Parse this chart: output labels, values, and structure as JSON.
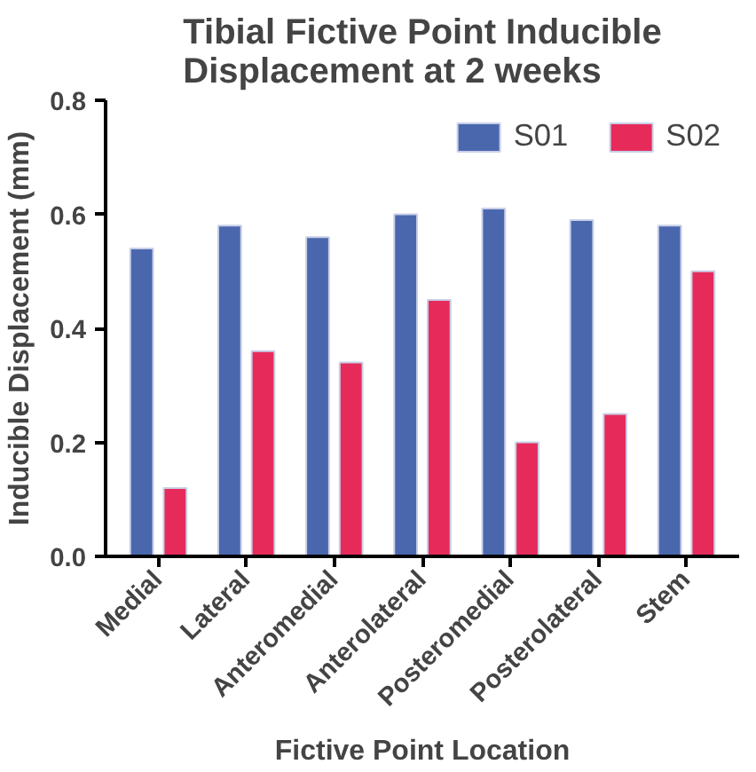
{
  "chart_data": {
    "type": "bar",
    "title": "Tibial Fictive Point Inducible\nDisplacement at 2 weeks",
    "xlabel": "Fictive Point Location",
    "ylabel": "Inducible Displacement (mm)",
    "categories": [
      "Medial",
      "Lateral",
      "Anteromedial",
      "Anterolateral",
      "Posteromedial",
      "Posterolateral",
      "Stem"
    ],
    "series": [
      {
        "name": "S01",
        "color": "#4a67ae",
        "values": [
          0.54,
          0.58,
          0.56,
          0.6,
          0.61,
          0.59,
          0.58
        ]
      },
      {
        "name": "S02",
        "color": "#e62b5b",
        "values": [
          0.12,
          0.36,
          0.34,
          0.45,
          0.2,
          0.25,
          0.5
        ]
      }
    ],
    "ylim": [
      0,
      0.8
    ],
    "yticks": [
      {
        "value": 0,
        "label": "0.0"
      },
      {
        "value": 0.2,
        "label": "0.2"
      },
      {
        "value": 0.4,
        "label": "0.4"
      },
      {
        "value": 0.6,
        "label": "0.6"
      },
      {
        "value": 0.8,
        "label": "0.8"
      }
    ],
    "grid": false,
    "legend": "top right"
  }
}
